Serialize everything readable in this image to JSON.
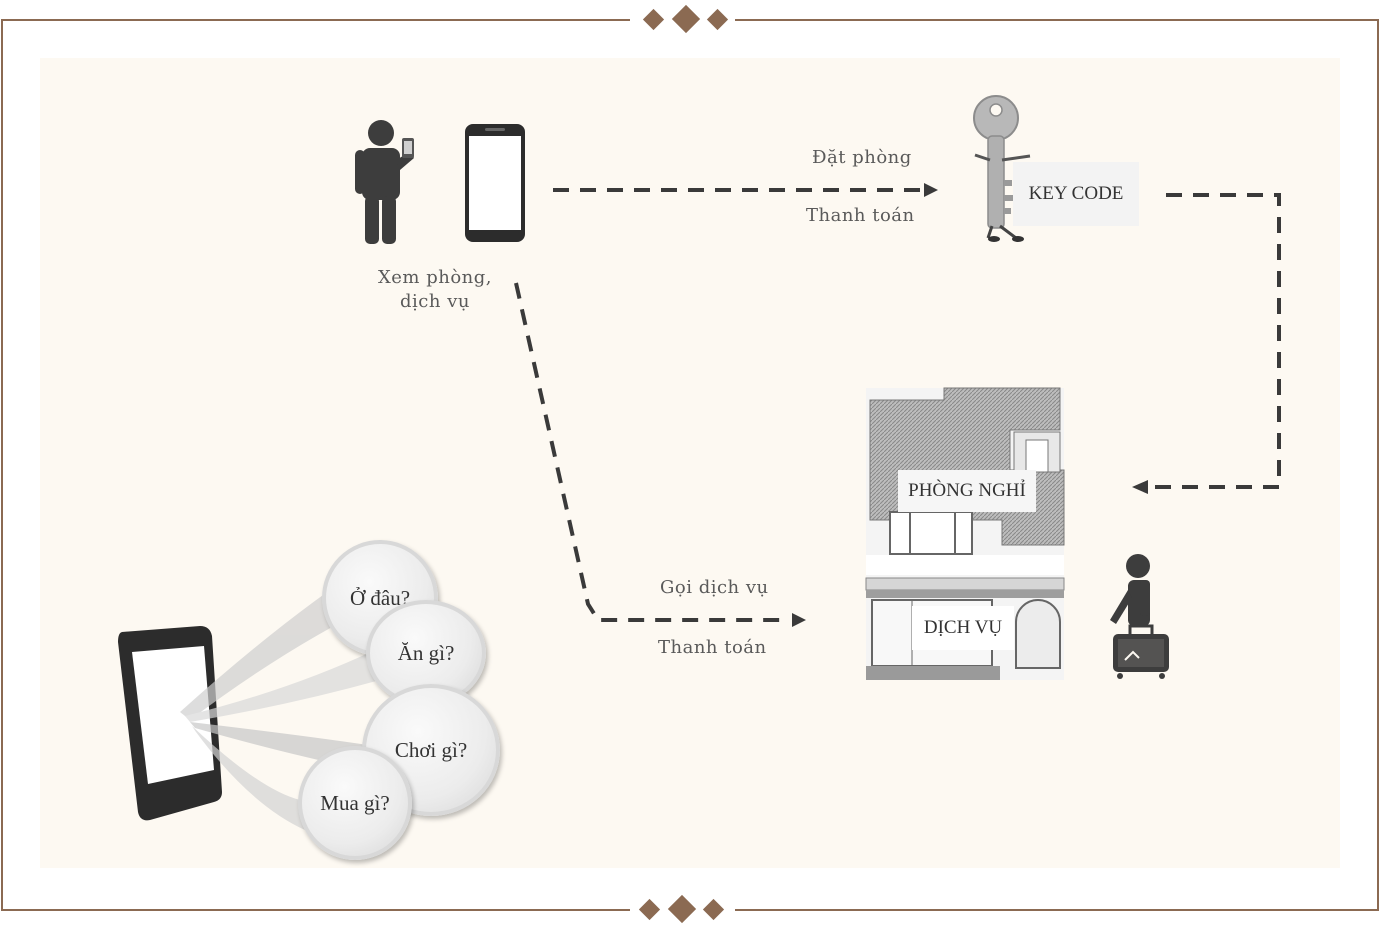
{
  "labels": {
    "browse": [
      "Xem phòng,",
      "dịch vụ"
    ],
    "book": "Đặt phòng",
    "pay_top": "Thanh toán",
    "order_service": "Gọi dịch vụ",
    "pay_bottom": "Thanh toán",
    "key_code": "KEY CODE",
    "room": "PHÒNG NGHỈ",
    "service": "DỊCH VỤ"
  },
  "bubbles": [
    "Ở đâu?",
    "Ăn gì?",
    "Chơi gì?",
    "Mua gì?"
  ],
  "colors": {
    "frame": "#8b6a52",
    "diamond": "#8b6a52",
    "panel": "#fdf9f2",
    "arrow": "#3a3a3a",
    "icon": "#3d3d3d"
  },
  "icons": [
    "person-with-phone-icon",
    "smartphone-icon",
    "key-character-icon",
    "house-icon",
    "traveler-with-suitcase-icon",
    "tilted-phone-icon"
  ]
}
